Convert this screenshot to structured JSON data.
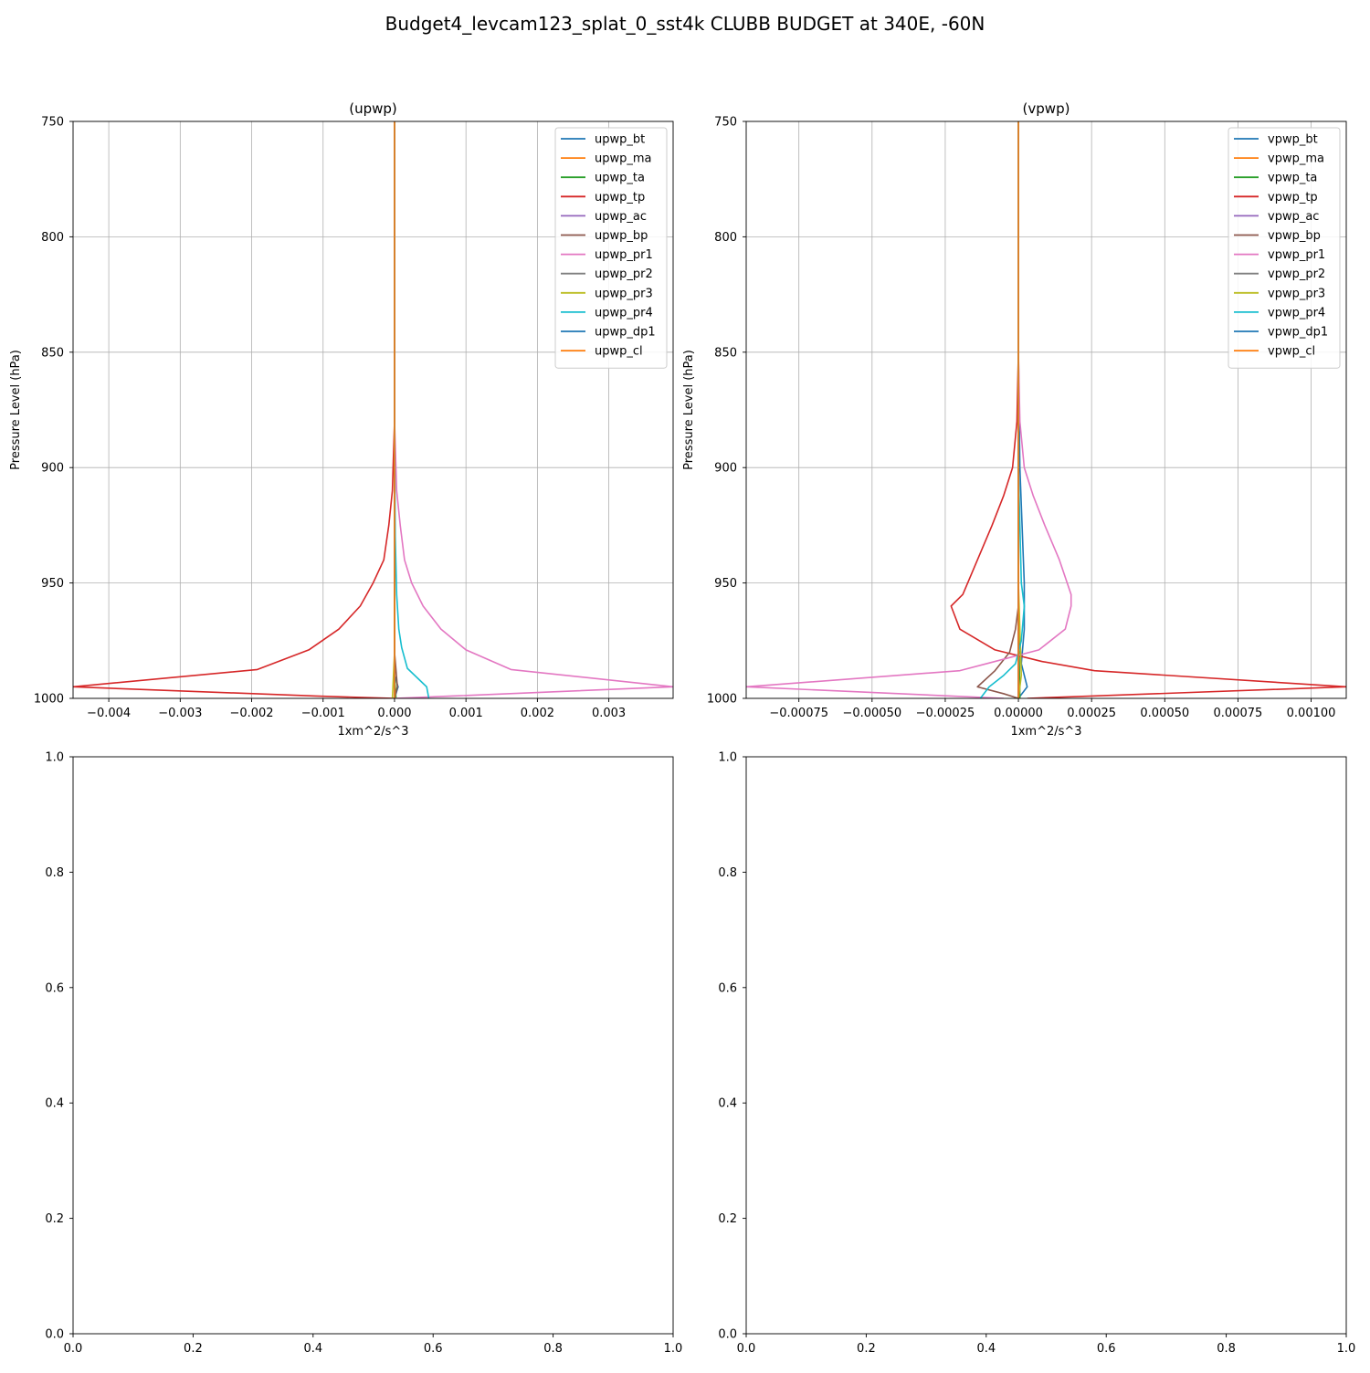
{
  "figure": {
    "title": "Budget4_levcam123_splat_0_sst4k CLUBB BUDGET at 340E, -60N"
  },
  "chart_data": [
    {
      "type": "line",
      "title": "(upwp)",
      "xlabel": "1xm^2/s^3",
      "ylabel": "Pressure Level (hPa)",
      "xlim": [
        -0.0045,
        0.0039
      ],
      "ylim": [
        1000,
        750
      ],
      "xticks": [
        -0.004,
        -0.003,
        -0.002,
        -0.001,
        0.0,
        0.001,
        0.002,
        0.003
      ],
      "xtick_labels": [
        "−0.004",
        "−0.003",
        "−0.002",
        "−0.001",
        "0.000",
        "0.001",
        "0.002",
        "0.003"
      ],
      "yticks": [
        750,
        800,
        850,
        900,
        950,
        1000
      ],
      "ytick_labels": [
        "750",
        "800",
        "850",
        "900",
        "950",
        "1000"
      ],
      "grid": true,
      "legend": "top-right",
      "series": [
        {
          "name": "upwp_bt",
          "color": "#1f77b4",
          "points": [
            [
              0.0,
              750
            ],
            [
              0.0,
              990
            ],
            [
              5e-05,
              995
            ],
            [
              0.0,
              1000
            ]
          ]
        },
        {
          "name": "upwp_ma",
          "color": "#ff7f0e",
          "points": [
            [
              0.0,
              750
            ],
            [
              0.0,
              1000
            ]
          ]
        },
        {
          "name": "upwp_ta",
          "color": "#2ca02c",
          "points": [
            [
              0.0,
              750
            ],
            [
              0.0,
              990
            ],
            [
              2e-05,
              1000
            ]
          ]
        },
        {
          "name": "upwp_tp",
          "color": "#d62728",
          "points": [
            [
              0.0,
              750
            ],
            [
              0.0,
              880
            ],
            [
              -3e-05,
              910
            ],
            [
              -8e-05,
              925
            ],
            [
              -0.00015,
              940
            ],
            [
              -0.0003,
              950
            ],
            [
              -0.00048,
              960
            ],
            [
              -0.00078,
              970
            ],
            [
              -0.0012,
              979
            ],
            [
              -0.00192,
              987.5
            ],
            [
              -0.0045,
              995
            ],
            [
              -0.0011,
              999
            ],
            [
              0.0,
              1000
            ]
          ]
        },
        {
          "name": "upwp_ac",
          "color": "#9467bd",
          "points": [
            [
              0.0,
              750
            ],
            [
              0.0,
              1000
            ]
          ]
        },
        {
          "name": "upwp_bp",
          "color": "#8c564b",
          "points": [
            [
              0.0,
              750
            ],
            [
              0.0,
              980
            ],
            [
              4e-05,
              995
            ],
            [
              0.0,
              1000
            ]
          ]
        },
        {
          "name": "upwp_pr1",
          "color": "#e377c2",
          "points": [
            [
              0.0,
              750
            ],
            [
              0.0,
              880
            ],
            [
              3e-05,
              910
            ],
            [
              8e-05,
              925
            ],
            [
              0.00014,
              940
            ],
            [
              0.00024,
              950
            ],
            [
              0.0004,
              960
            ],
            [
              0.00065,
              970
            ],
            [
              0.001,
              979
            ],
            [
              0.00163,
              987.5
            ],
            [
              0.0039,
              995
            ],
            [
              0.0008,
              999
            ],
            [
              0.0,
              1000
            ]
          ]
        },
        {
          "name": "upwp_pr2",
          "color": "#7f7f7f",
          "points": [
            [
              0.0,
              750
            ],
            [
              0.0,
              1000
            ]
          ]
        },
        {
          "name": "upwp_pr3",
          "color": "#bcbd22",
          "points": [
            [
              0.0,
              750
            ],
            [
              0.0,
              980
            ],
            [
              -3e-05,
              1000
            ]
          ]
        },
        {
          "name": "upwp_pr4",
          "color": "#17becf",
          "points": [
            [
              0.0,
              750
            ],
            [
              0.0,
              880
            ],
            [
              1e-05,
              930
            ],
            [
              3e-05,
              955
            ],
            [
              6e-05,
              970
            ],
            [
              0.0001,
              978
            ],
            [
              0.00018,
              987
            ],
            [
              0.00045,
              995
            ],
            [
              0.00048,
              1000
            ]
          ]
        },
        {
          "name": "upwp_dp1",
          "color": "#1f77b4",
          "points": [
            [
              0.0,
              750
            ],
            [
              0.0,
              1000
            ]
          ]
        },
        {
          "name": "upwp_cl",
          "color": "#ff7f0e",
          "points": [
            [
              0.0,
              750
            ],
            [
              0.0,
              1000
            ]
          ]
        }
      ]
    },
    {
      "type": "line",
      "title": "(vpwp)",
      "xlabel": "1xm^2/s^3",
      "ylabel": "Pressure Level (hPa)",
      "xlim": [
        -0.00093,
        0.00112
      ],
      "ylim": [
        1000,
        750
      ],
      "xticks": [
        -0.00075,
        -0.0005,
        -0.00025,
        0.0,
        0.00025,
        0.0005,
        0.00075,
        0.001
      ],
      "xtick_labels": [
        "−0.00075",
        "−0.00050",
        "−0.00025",
        "0.00000",
        "0.00025",
        "0.00050",
        "0.00075",
        "0.00100"
      ],
      "yticks": [
        750,
        800,
        850,
        900,
        950,
        1000
      ],
      "ytick_labels": [
        "750",
        "800",
        "850",
        "900",
        "950",
        "1000"
      ],
      "grid": true,
      "legend": "top-right",
      "series": [
        {
          "name": "vpwp_bt",
          "color": "#1f77b4",
          "points": [
            [
              0.0,
              750
            ],
            [
              0.0,
              850
            ],
            [
              5e-06,
              900
            ],
            [
              2e-05,
              950
            ],
            [
              2e-05,
              970
            ],
            [
              1e-05,
              985
            ],
            [
              3e-05,
              995
            ],
            [
              0.0,
              1000
            ]
          ]
        },
        {
          "name": "vpwp_ma",
          "color": "#ff7f0e",
          "points": [
            [
              0.0,
              750
            ],
            [
              0.0,
              1000
            ]
          ]
        },
        {
          "name": "vpwp_ta",
          "color": "#2ca02c",
          "points": [
            [
              0.0,
              750
            ],
            [
              0.0,
              960
            ],
            [
              5e-06,
              1000
            ]
          ]
        },
        {
          "name": "vpwp_tp",
          "color": "#d62728",
          "points": [
            [
              0.0,
              750
            ],
            [
              0.0,
              850
            ],
            [
              -5e-06,
              880
            ],
            [
              -2e-05,
              900
            ],
            [
              -5e-05,
              912
            ],
            [
              -9e-05,
              925
            ],
            [
              -0.00014,
              940
            ],
            [
              -0.00019,
              955
            ],
            [
              -0.00023,
              960
            ],
            [
              -0.0002,
              970
            ],
            [
              -8e-05,
              979
            ],
            [
              8e-05,
              984
            ],
            [
              0.00026,
              988
            ],
            [
              0.00112,
              995
            ],
            [
              3e-05,
              1000
            ]
          ]
        },
        {
          "name": "vpwp_ac",
          "color": "#9467bd",
          "points": [
            [
              0.0,
              750
            ],
            [
              0.0,
              1000
            ]
          ]
        },
        {
          "name": "vpwp_bp",
          "color": "#8c564b",
          "points": [
            [
              0.0,
              750
            ],
            [
              0.0,
              960
            ],
            [
              -1e-05,
              970
            ],
            [
              -3e-05,
              980
            ],
            [
              -8e-05,
              988
            ],
            [
              -0.00014,
              995
            ],
            [
              -5e-05,
              998
            ],
            [
              0.0,
              1000
            ]
          ]
        },
        {
          "name": "vpwp_pr1",
          "color": "#e377c2",
          "points": [
            [
              0.0,
              750
            ],
            [
              0.0,
              850
            ],
            [
              5e-06,
              880
            ],
            [
              2e-05,
              900
            ],
            [
              5e-05,
              912
            ],
            [
              9e-05,
              925
            ],
            [
              0.00014,
              940
            ],
            [
              0.00018,
              955
            ],
            [
              0.00018,
              960
            ],
            [
              0.00016,
              970
            ],
            [
              7e-05,
              979
            ],
            [
              -8e-05,
              984
            ],
            [
              -0.0002,
              988
            ],
            [
              -0.00093,
              995
            ],
            [
              -5e-05,
              1000
            ]
          ]
        },
        {
          "name": "vpwp_pr2",
          "color": "#7f7f7f",
          "points": [
            [
              0.0,
              750
            ],
            [
              0.0,
              1000
            ]
          ]
        },
        {
          "name": "vpwp_pr3",
          "color": "#bcbd22",
          "points": [
            [
              0.0,
              750
            ],
            [
              0.0,
              950
            ],
            [
              1e-05,
              990
            ],
            [
              0.0,
              1000
            ]
          ]
        },
        {
          "name": "vpwp_pr4",
          "color": "#17becf",
          "points": [
            [
              0.0,
              750
            ],
            [
              0.0,
              900
            ],
            [
              1e-05,
              950
            ],
            [
              2e-05,
              960
            ],
            [
              1e-05,
              975
            ],
            [
              -1e-05,
              985
            ],
            [
              -5e-05,
              990
            ],
            [
              -0.0001,
              995
            ],
            [
              -0.00013,
              1000
            ]
          ]
        },
        {
          "name": "vpwp_dp1",
          "color": "#1f77b4",
          "points": [
            [
              0.0,
              750
            ],
            [
              0.0,
              1000
            ]
          ]
        },
        {
          "name": "vpwp_cl",
          "color": "#ff7f0e",
          "points": [
            [
              0.0,
              750
            ],
            [
              0.0,
              1000
            ]
          ]
        }
      ]
    },
    {
      "type": "line",
      "title": "",
      "xlim": [
        0.0,
        1.0
      ],
      "ylim": [
        0.0,
        1.0
      ],
      "xticks": [
        0.0,
        0.2,
        0.4,
        0.6,
        0.8,
        1.0
      ],
      "xtick_labels": [
        "0.0",
        "0.2",
        "0.4",
        "0.6",
        "0.8",
        "1.0"
      ],
      "yticks": [
        0.0,
        0.2,
        0.4,
        0.6,
        0.8,
        1.0
      ],
      "ytick_labels": [
        "0.0",
        "0.2",
        "0.4",
        "0.6",
        "0.8",
        "1.0"
      ],
      "grid": false,
      "series": []
    },
    {
      "type": "line",
      "title": "",
      "xlim": [
        0.0,
        1.0
      ],
      "ylim": [
        0.0,
        1.0
      ],
      "xticks": [
        0.0,
        0.2,
        0.4,
        0.6,
        0.8,
        1.0
      ],
      "xtick_labels": [
        "0.0",
        "0.2",
        "0.4",
        "0.6",
        "0.8",
        "1.0"
      ],
      "yticks": [
        0.0,
        0.2,
        0.4,
        0.6,
        0.8,
        1.0
      ],
      "ytick_labels": [
        "0.0",
        "0.2",
        "0.4",
        "0.6",
        "0.8",
        "1.0"
      ],
      "grid": false,
      "series": []
    }
  ]
}
